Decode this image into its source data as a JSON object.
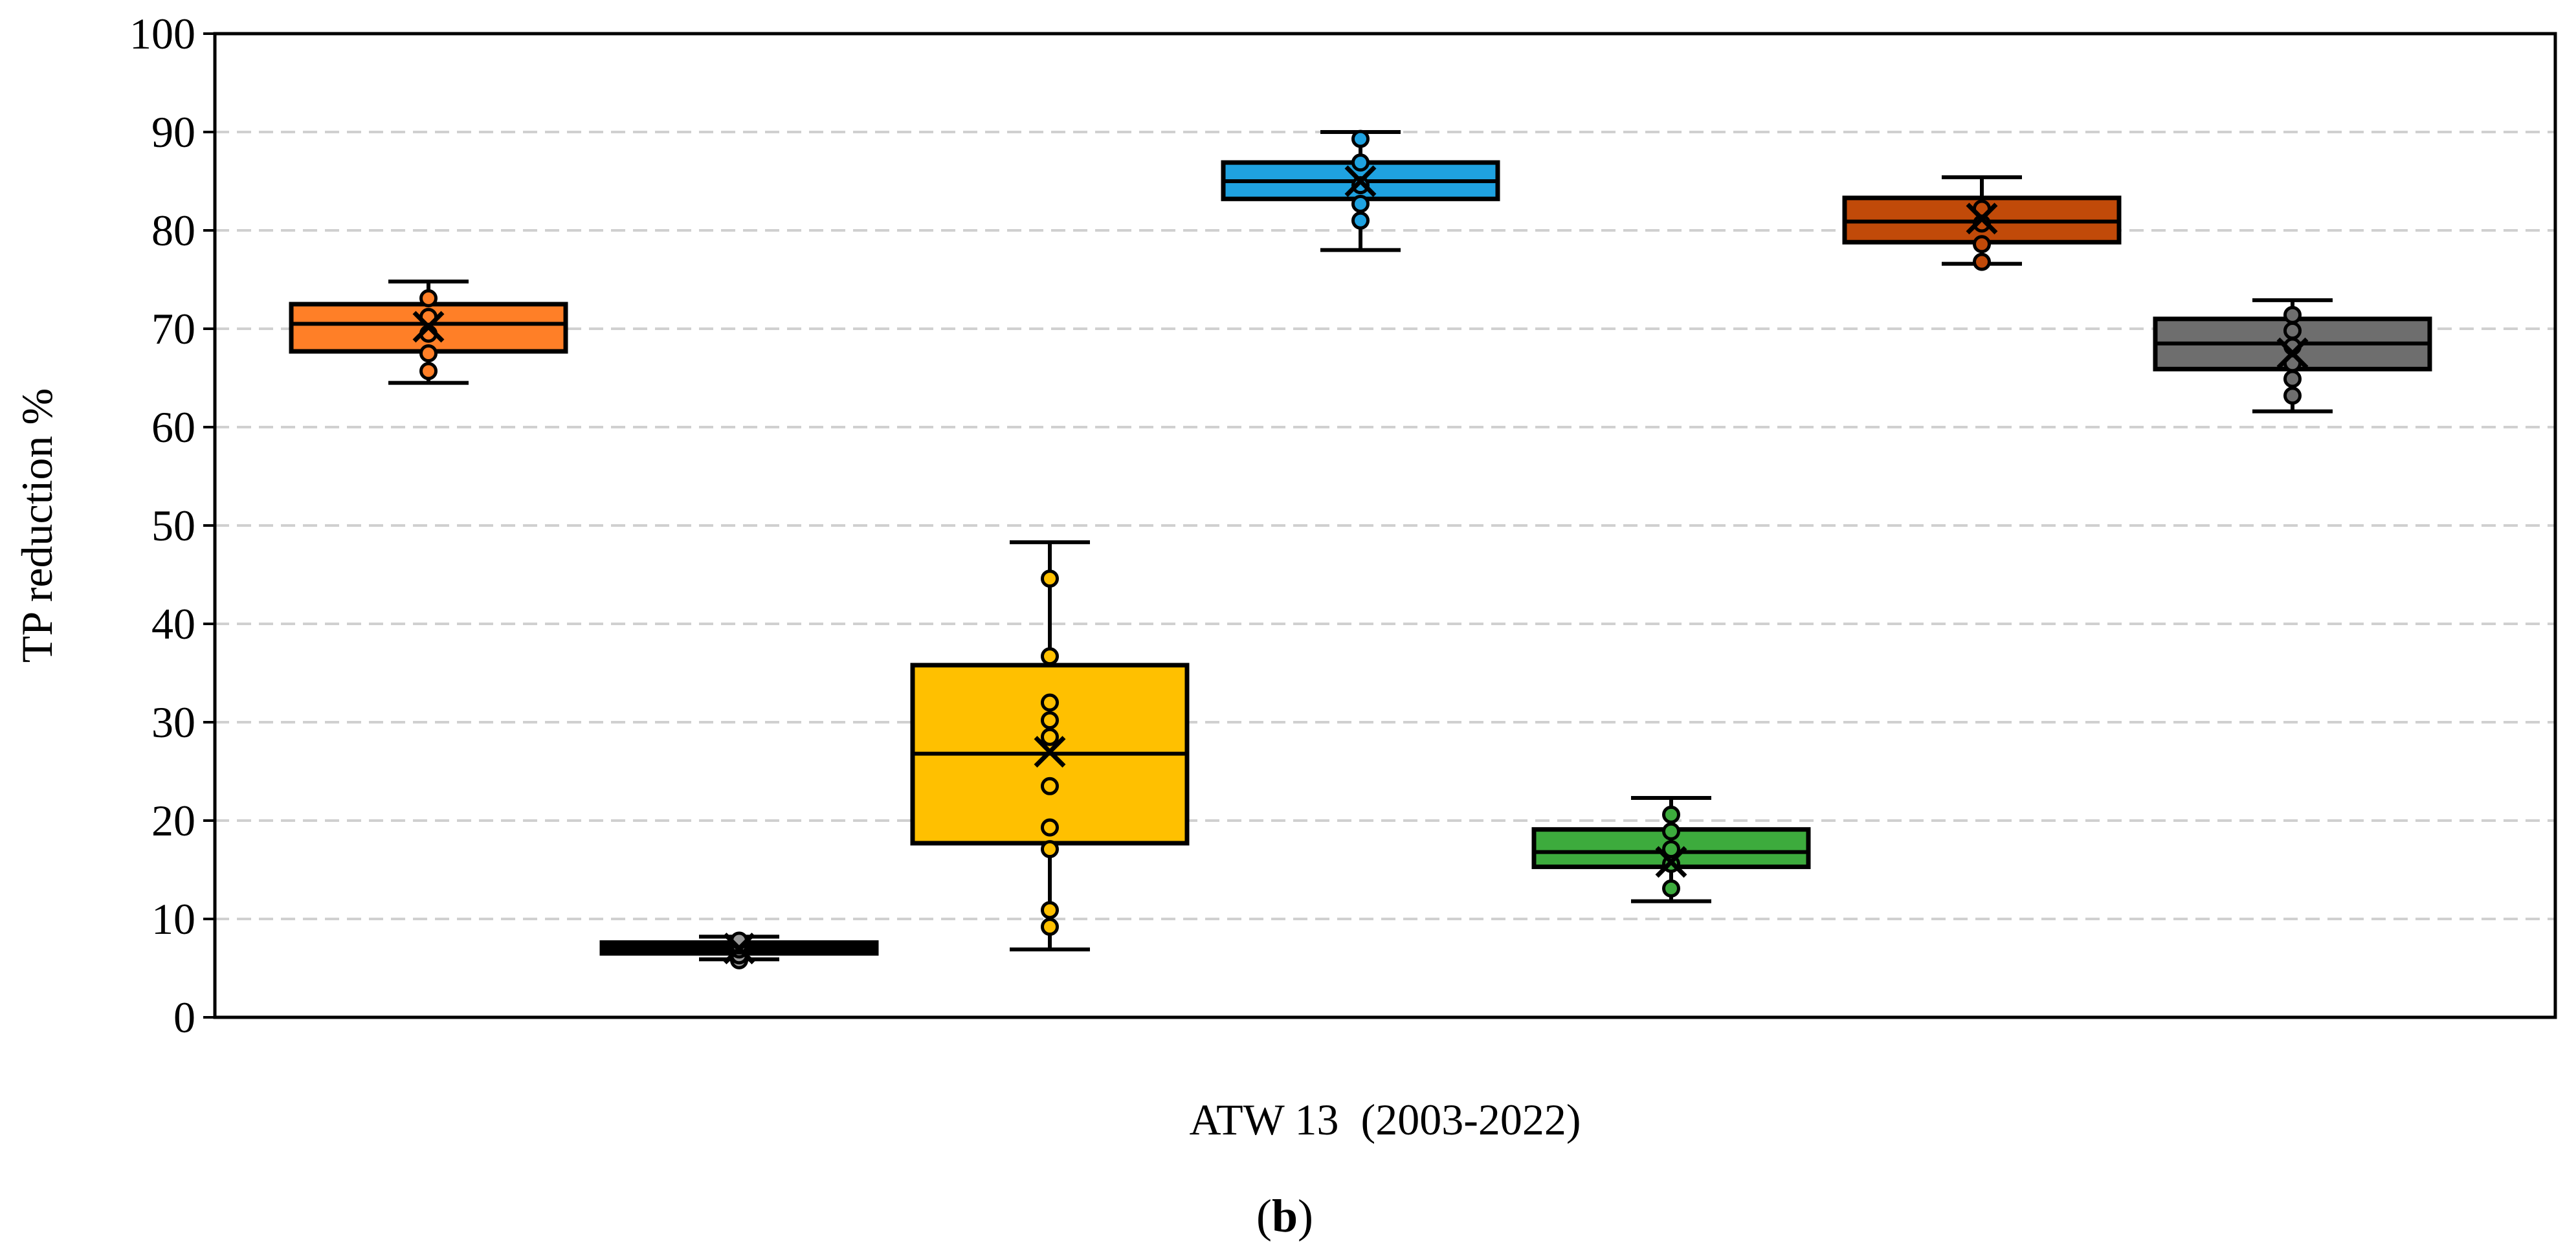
{
  "figure": {
    "caption_open": "(",
    "caption_letter": "b",
    "caption_close": ")"
  },
  "chart_data": {
    "type": "box",
    "title": "",
    "xlabel": "ATW 13  (2003-2022)",
    "ylabel": "TP reduction %",
    "ylim": [
      0,
      100
    ],
    "yticks": [
      0,
      10,
      20,
      30,
      40,
      50,
      60,
      70,
      80,
      90,
      100
    ],
    "grid": "horizontal-dashed",
    "legend": "none",
    "series": [
      {
        "color": "#FF7F27",
        "whisker_low": 64.5,
        "q1": 67.7,
        "median": 70.5,
        "q3": 72.5,
        "whisker_high": 74.8,
        "mean": 70.2,
        "points": [
          65.7,
          67.5,
          69.5,
          71.2,
          73.1
        ]
      },
      {
        "color": "#000000",
        "whisker_low": 5.9,
        "q1": 6.5,
        "median": 7.1,
        "q3": 7.6,
        "whisker_high": 8.2,
        "mean": 7.0,
        "points": [
          5.8,
          6.3,
          6.9,
          7.3,
          7.8
        ]
      },
      {
        "color": "#FFC000",
        "whisker_low": 6.9,
        "q1": 17.7,
        "median": 26.8,
        "q3": 35.8,
        "whisker_high": 48.3,
        "mean": 27.0,
        "points": [
          9.2,
          10.9,
          17.1,
          19.3,
          23.5,
          28.5,
          30.2,
          32.0,
          36.7,
          44.6
        ]
      },
      {
        "color": "#1FA2E0",
        "whisker_low": 78.0,
        "q1": 83.2,
        "median": 85.0,
        "q3": 86.9,
        "whisker_high": 90.0,
        "mean": 85.0,
        "points": [
          81.0,
          82.7,
          84.6,
          86.9,
          89.3
        ]
      },
      {
        "color": "#3DAB3D",
        "whisker_low": 11.8,
        "q1": 15.3,
        "median": 16.8,
        "q3": 19.1,
        "whisker_high": 22.3,
        "mean": 15.8,
        "points": [
          13.1,
          15.6,
          17.1,
          18.9,
          20.6
        ]
      },
      {
        "color": "#C14A09",
        "whisker_low": 76.6,
        "q1": 78.8,
        "median": 80.9,
        "q3": 83.3,
        "whisker_high": 85.4,
        "mean": 81.2,
        "points": [
          76.8,
          78.6,
          80.7,
          82.2
        ]
      },
      {
        "color": "#6E6E6E",
        "whisker_low": 61.6,
        "q1": 65.9,
        "median": 68.5,
        "q3": 71.0,
        "whisker_high": 72.9,
        "mean": 67.5,
        "points": [
          63.2,
          64.9,
          66.5,
          68.2,
          69.8,
          71.4
        ]
      }
    ]
  }
}
